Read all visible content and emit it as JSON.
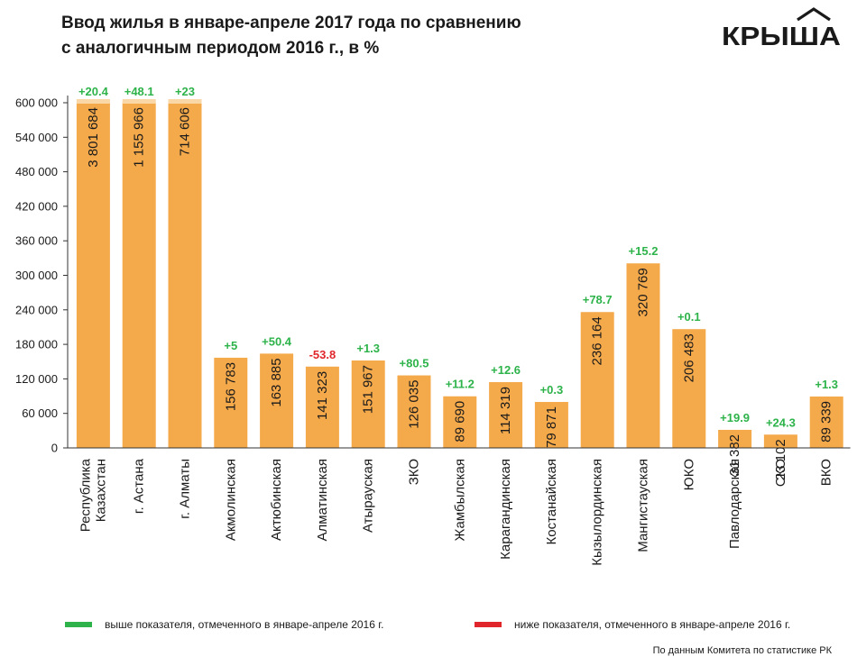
{
  "header": {
    "title_line1": "Ввод жилья в январе-апреле 2017 года по сравнению",
    "title_line2": "с аналогичным периодом 2016 г., в %",
    "logo_text": "КРЫША"
  },
  "colors": {
    "bar": "#F4A94B",
    "bar_cap": "#FAD7A6",
    "positive": "#2DB34A",
    "negative": "#E0262B",
    "axis": "#333333"
  },
  "chart_data": {
    "type": "bar",
    "categories": [
      "Республика Казахстан",
      "г. Астана",
      "г. Алматы",
      "Акмолинская",
      "Актюбинская",
      "Алматинская",
      "Атырауская",
      "ЗКО",
      "Жамбылская",
      "Карагандинская",
      "Костанайская",
      "Кызылординская",
      "Мангистауская",
      "ЮКО",
      "Павлодарская",
      "СКО",
      "ВКО"
    ],
    "category_lines": [
      [
        "Республика",
        "Казахстан"
      ],
      [
        "г. Астана"
      ],
      [
        "г. Алматы"
      ],
      [
        "Акмолинская"
      ],
      [
        "Актюбинская"
      ],
      [
        "Алматинская"
      ],
      [
        "Атырауская"
      ],
      [
        "ЗКО"
      ],
      [
        "Жамбылская"
      ],
      [
        "Карагандинская"
      ],
      [
        "Костанайская"
      ],
      [
        "Кызылординская"
      ],
      [
        "Мангистауская"
      ],
      [
        "ЮКО"
      ],
      [
        "Павлодарская"
      ],
      [
        "СКО"
      ],
      [
        "ВКО"
      ]
    ],
    "values": [
      3801684,
      1155966,
      714606,
      156783,
      163885,
      141323,
      151967,
      126035,
      89690,
      114319,
      79871,
      236164,
      320769,
      206483,
      31382,
      23102,
      89339
    ],
    "value_labels": [
      "3 801 684",
      "1 155 966",
      "714 606",
      "156 783",
      "163 885",
      "141 323",
      "151 967",
      "126 035",
      "89 690",
      "114 319",
      "79 871",
      "236 164",
      "320 769",
      "206 483",
      "31 382",
      "23 102",
      "89 339"
    ],
    "change_labels": [
      "+20.4",
      "+48.1",
      "+23",
      "+5",
      "+50.4",
      "-53.8",
      "+1.3",
      "+80.5",
      "+11.2",
      "+12.6",
      "+0.3",
      "+78.7",
      "+15.2",
      "+0.1",
      "+19.9",
      "+24.3",
      "+1.3"
    ],
    "change_values": [
      20.4,
      48.1,
      23,
      5,
      50.4,
      -53.8,
      1.3,
      80.5,
      11.2,
      12.6,
      0.3,
      78.7,
      15.2,
      0.1,
      19.9,
      24.3,
      1.3
    ],
    "ylim": [
      0,
      600000
    ],
    "yticks": [
      0,
      60000,
      120000,
      180000,
      240000,
      300000,
      360000,
      420000,
      480000,
      540000,
      600000
    ],
    "ytick_labels": [
      "0",
      "60 000",
      "120 000",
      "180 000",
      "240 000",
      "300 000",
      "360 000",
      "420 000",
      "480 000",
      "540 000",
      "600 000"
    ],
    "clipped_at_axis_max": [
      "Республика Казахстан",
      "г. Астана",
      "г. Алматы"
    ],
    "grid": false,
    "legend": [
      {
        "color": "#2DB34A",
        "label": "выше показателя, отмеченного в январе-апреле 2016 г."
      },
      {
        "color": "#E0262B",
        "label": "ниже показателя, отмеченного в январе-апреле 2016 г."
      }
    ],
    "legend_position": "bottom"
  },
  "footer": {
    "source": "По данным Комитета по статистике РК"
  }
}
